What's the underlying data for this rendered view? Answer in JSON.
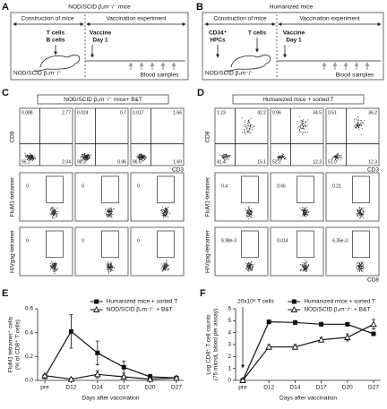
{
  "panel_a": {
    "label": "A",
    "title": "NOD/SCID β₂m⁻/⁻ mice",
    "construction": "Construction of mice",
    "vaccination": "Vaccination experiment",
    "cells": [
      "T cells",
      "B cells"
    ],
    "vaccine": "Vaccine",
    "day": "Day 1",
    "strain": "NOD/SCID β₂m⁻/⁻",
    "blood": "Blood samples"
  },
  "panel_b": {
    "label": "B",
    "title": "Humanized mice",
    "construction": "Construction of mice",
    "vaccination": "Vaccination experiment",
    "cells": [
      "CD34⁺",
      "HPCs"
    ],
    "t_cells": "T cells",
    "vaccine": "Vaccine",
    "day": "Day 1",
    "strain": "NOD/SCID β₂m⁻/⁻",
    "blood": "Blood samples"
  },
  "panel_c": {
    "label": "C",
    "title": "NOD/SCID β₂m⁻/⁻ mice+ B&T",
    "rows": [
      {
        "y_label": "CD8",
        "x_label": "CD3",
        "plots": [
          [
            "0.088",
            "2.77",
            "95.1",
            "2.04"
          ],
          [
            "0.024",
            "0.7",
            "98.3",
            "0.96"
          ],
          [
            "0.017",
            "1.66",
            "96.6",
            "1.69"
          ]
        ]
      },
      {
        "y_label": "FluM1-tetramer",
        "plots": [
          "0",
          "0",
          "0"
        ]
      },
      {
        "y_label": "HIVgag-tetramer",
        "plots": [
          "0",
          "0",
          "0"
        ]
      }
    ]
  },
  "panel_d": {
    "label": "D",
    "title": "Humanized mice + sorted T",
    "rows": [
      {
        "y_label": "CD8",
        "x_label": "CD3",
        "plots": [
          [
            "1.23",
            "42.2",
            "41.4",
            "15.1"
          ],
          [
            "0.96",
            "34.5",
            "52.2",
            "12.3"
          ],
          [
            "0.51",
            "36.2",
            "51.0",
            "12.3"
          ]
        ]
      },
      {
        "y_label": "FluM1-tetramer",
        "plots": [
          "0.4",
          "0.66",
          "0.21"
        ]
      },
      {
        "y_label": "HIVgag-tetramer",
        "x_label": "CD8",
        "plots": [
          "6.98e-3",
          "0.014",
          "6.35e-3"
        ]
      }
    ]
  },
  "chart_data": [
    {
      "type": "line",
      "panel_label": "E",
      "y_label": [
        "FluM1 tetramer⁺ cells",
        "(% of CD8⁺ T cells)"
      ],
      "x_label": "Days after vaccination",
      "categories": [
        "pre",
        "D12",
        "D14",
        "D17",
        "D20",
        "D27"
      ],
      "ylim": [
        0,
        0.6
      ],
      "yticks": [
        {
          "value": 0,
          "label": "0.0"
        },
        0.2,
        0.4,
        0.6
      ],
      "legend": "top-right",
      "series": [
        {
          "name": "Humanized mice + sorted T",
          "color": "#111111",
          "marker": "square",
          "values": [
            0.03,
            0.41,
            0.23,
            0.11,
            0.03,
            0.02
          ],
          "errors": [
            0.01,
            0.14,
            0.1,
            0.05,
            0.02,
            0.01
          ]
        },
        {
          "name": "NOD/SCID β₂m⁻/⁻ + B&T",
          "color": "#111111",
          "marker": "triangle",
          "values": [
            0.04,
            0.01,
            0.05,
            0.03,
            0.01,
            0.02
          ],
          "errors": [
            0.01,
            0.01,
            0.03,
            0.01,
            0.01,
            0.01
          ]
        }
      ]
    },
    {
      "type": "line",
      "panel_label": "F",
      "y_label": [
        "Log CD8⁺ T cell counts",
        "(75 microL blood per assay)"
      ],
      "x_label": "Days after vaccination",
      "categories": [
        "pre",
        "D12",
        "D14",
        "D17",
        "D20",
        "D27"
      ],
      "annotation": "20x10⁶ T cells",
      "ylim": [
        0,
        6
      ],
      "yticks": [
        0,
        1,
        2,
        3,
        4,
        5,
        6
      ],
      "legend": "top-right",
      "series": [
        {
          "name": "Humanized mice + sorted T",
          "color": "#111111",
          "marker": "square",
          "values": [
            0,
            4.9,
            4.85,
            4.7,
            4.7,
            3.9
          ],
          "errors": [
            0,
            0.15,
            0.15,
            0.15,
            0.1,
            0.1
          ]
        },
        {
          "name": "NOD/SCID β₂m⁻/⁻ + B&T",
          "color": "#111111",
          "marker": "triangle",
          "values": [
            0,
            2.8,
            2.8,
            3.4,
            3.6,
            4.7
          ],
          "errors": [
            0,
            0.2,
            0.2,
            0.2,
            0.3,
            0.4
          ]
        }
      ]
    }
  ]
}
